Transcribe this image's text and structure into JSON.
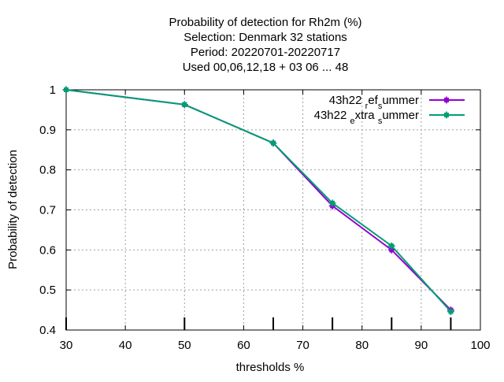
{
  "chart_data": {
    "type": "line",
    "title_lines": [
      "Probability of detection  for Rh2m (%)",
      "Selection: Denmark     32 stations",
      "Period: 20220701-20220717",
      "Used  00,06,12,18  + 03 06 ... 48"
    ],
    "xlabel": "thresholds %",
    "ylabel": "Probability of detection",
    "xlim": [
      30,
      100
    ],
    "ylim": [
      0.4,
      1.0
    ],
    "x_ticks": [
      30,
      40,
      50,
      60,
      70,
      80,
      90,
      100
    ],
    "x_tick_labels": [
      "30",
      "40",
      "50",
      "60",
      "70",
      "80",
      "90",
      "100"
    ],
    "y_ticks": [
      0.4,
      0.5,
      0.6,
      0.7,
      0.8,
      0.9,
      1.0
    ],
    "y_tick_labels": [
      "0.4",
      "0.5",
      "0.6",
      "0.7",
      "0.8",
      "0.9",
      "1"
    ],
    "grid": true,
    "legend_position": "top-right",
    "bottom_markers": [
      30,
      50,
      65,
      75,
      85,
      95
    ],
    "x": [
      30,
      50,
      65,
      75,
      85,
      95
    ],
    "series": [
      {
        "name": "43h22 ref summer",
        "legend_parts": [
          {
            "text": "43h22 ",
            "sub": false
          },
          {
            "text": "r",
            "sub": true
          },
          {
            "text": "ef",
            "sub": false
          },
          {
            "text": "s",
            "sub": true
          },
          {
            "text": "ummer",
            "sub": false
          }
        ],
        "color": "#9400d3",
        "values": [
          1.0,
          0.963,
          0.867,
          0.71,
          0.6,
          0.45
        ]
      },
      {
        "name": "43h22 extra summer",
        "legend_parts": [
          {
            "text": "43h22 ",
            "sub": false
          },
          {
            "text": "e",
            "sub": true
          },
          {
            "text": "xtra ",
            "sub": false
          },
          {
            "text": "s",
            "sub": true
          },
          {
            "text": "ummer",
            "sub": false
          }
        ],
        "color": "#009e73",
        "values": [
          1.0,
          0.963,
          0.867,
          0.717,
          0.61,
          0.446
        ]
      }
    ]
  }
}
